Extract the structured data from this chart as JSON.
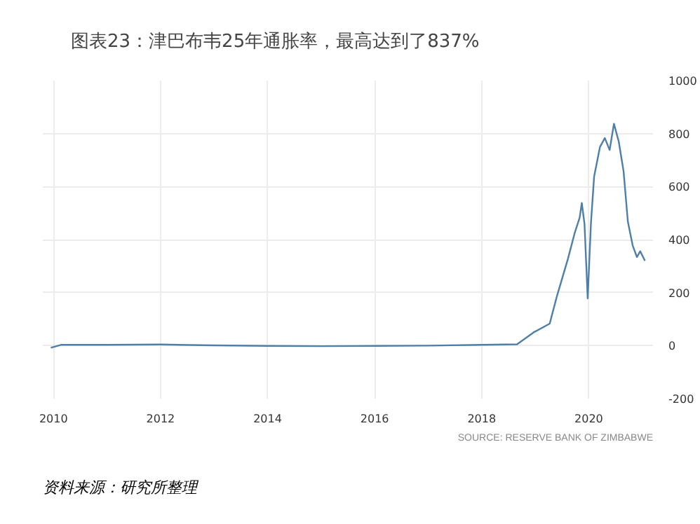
{
  "chart_data": {
    "type": "line",
    "title": "图表23：津巴布韦25年通胀率，最高达到了837%",
    "x": [
      2009.95,
      2010.15,
      2011,
      2012,
      2013,
      2014,
      2015,
      2016,
      2017,
      2018,
      2018.66,
      2018.97,
      2019.27,
      2019.4,
      2019.61,
      2019.74,
      2019.83,
      2019.87,
      2019.92,
      2019.98,
      2020.04,
      2020.1,
      2020.21,
      2020.3,
      2020.39,
      2020.47,
      2020.56,
      2020.65,
      2020.73,
      2020.82,
      2020.9,
      2020.96,
      2021.05
    ],
    "series": [
      {
        "color": "#4f7fa8",
        "values": [
          -8,
          3,
          3,
          4,
          1,
          -1,
          -2,
          -1,
          0,
          3,
          5,
          50,
          83,
          183,
          327,
          427,
          483,
          538,
          460,
          178,
          460,
          638,
          750,
          783,
          738,
          837,
          770,
          658,
          468,
          378,
          334,
          356,
          320
        ]
      }
    ],
    "xlim": [
      2009.8,
      2021.2
    ],
    "ylim": [
      -200,
      1000
    ],
    "xticks": [
      2010,
      2012,
      2014,
      2016,
      2018,
      2020
    ],
    "yticks": [
      -200,
      0,
      200,
      400,
      600,
      800,
      1000
    ],
    "grid": true,
    "marker": "none",
    "line_style": "solid",
    "annotations": [
      "SOURCE: RESERVE BANK OF ZIMBABWE",
      "资料来源：研究所整理"
    ]
  }
}
